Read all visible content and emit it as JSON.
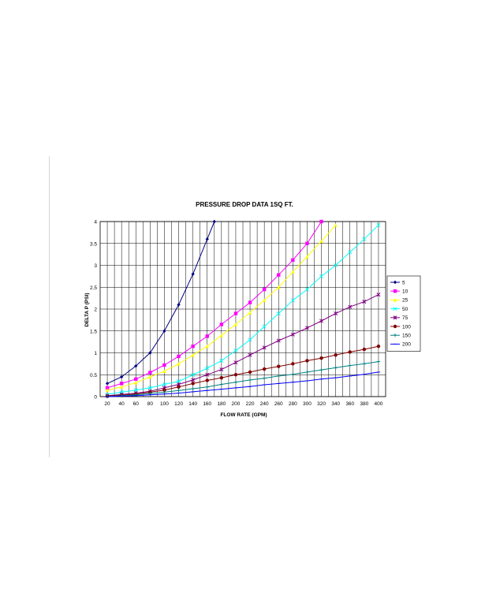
{
  "chart_data": {
    "type": "line",
    "title": "PRESSURE DROP DATA 1SQ FT.",
    "xlabel": "FLOW RATE (GPM)",
    "ylabel": "DELTA P (PSI)",
    "xlim": [
      10,
      410
    ],
    "ylim": [
      0,
      4
    ],
    "x_ticks": [
      20,
      40,
      60,
      80,
      100,
      120,
      140,
      160,
      180,
      200,
      220,
      240,
      260,
      280,
      300,
      320,
      340,
      360,
      380,
      400
    ],
    "y_ticks": [
      0,
      0.5,
      1,
      1.5,
      2,
      2.5,
      3,
      3.5,
      4
    ],
    "y_tick_labels": [
      "0",
      "0.5",
      "1",
      "1.5",
      "2",
      "2.5",
      "3",
      "3.5",
      "4"
    ],
    "grid": true,
    "legend_position": "right",
    "series": [
      {
        "name": "5",
        "color": "#000080",
        "marker": "diamond",
        "x": [
          20,
          40,
          60,
          80,
          100,
          120,
          140,
          160,
          170
        ],
        "y": [
          0.3,
          0.45,
          0.7,
          1.0,
          1.5,
          2.1,
          2.8,
          3.6,
          4.0
        ]
      },
      {
        "name": "10",
        "color": "#ff00ff",
        "marker": "square",
        "x": [
          20,
          40,
          60,
          80,
          100,
          120,
          140,
          160,
          180,
          200,
          220,
          240,
          260,
          280,
          300,
          320
        ],
        "y": [
          0.2,
          0.3,
          0.4,
          0.55,
          0.72,
          0.92,
          1.15,
          1.38,
          1.65,
          1.9,
          2.15,
          2.45,
          2.78,
          3.12,
          3.5,
          4.0
        ]
      },
      {
        "name": "25",
        "color": "#ffff00",
        "marker": "triangle",
        "x": [
          20,
          40,
          60,
          80,
          100,
          120,
          140,
          160,
          180,
          200,
          220,
          240,
          260,
          280,
          300,
          320,
          340
        ],
        "y": [
          0.15,
          0.22,
          0.32,
          0.45,
          0.58,
          0.75,
          0.95,
          1.15,
          1.4,
          1.65,
          1.92,
          2.2,
          2.5,
          2.85,
          3.2,
          3.55,
          3.92
        ]
      },
      {
        "name": "50",
        "color": "#00ffff",
        "marker": "x",
        "x": [
          20,
          40,
          60,
          80,
          100,
          120,
          140,
          160,
          180,
          200,
          220,
          240,
          260,
          280,
          300,
          320,
          340,
          360,
          380,
          400
        ],
        "y": [
          0.05,
          0.1,
          0.15,
          0.2,
          0.28,
          0.35,
          0.5,
          0.65,
          0.82,
          1.05,
          1.3,
          1.6,
          1.9,
          2.2,
          2.45,
          2.75,
          3.0,
          3.3,
          3.6,
          3.92
        ]
      },
      {
        "name": "75",
        "color": "#800080",
        "marker": "star",
        "x": [
          20,
          40,
          60,
          80,
          100,
          120,
          140,
          160,
          180,
          200,
          220,
          240,
          260,
          280,
          300,
          320,
          340,
          360,
          380,
          400
        ],
        "y": [
          0.02,
          0.05,
          0.08,
          0.12,
          0.2,
          0.28,
          0.38,
          0.5,
          0.62,
          0.78,
          0.95,
          1.12,
          1.28,
          1.42,
          1.57,
          1.73,
          1.9,
          2.05,
          2.17,
          2.33
        ]
      },
      {
        "name": "100",
        "color": "#800000",
        "marker": "circle",
        "x": [
          20,
          40,
          60,
          80,
          100,
          120,
          140,
          160,
          180,
          200,
          220,
          240,
          260,
          280,
          300,
          320,
          340,
          360,
          380,
          400
        ],
        "y": [
          0.01,
          0.03,
          0.06,
          0.1,
          0.15,
          0.22,
          0.3,
          0.37,
          0.43,
          0.5,
          0.56,
          0.63,
          0.69,
          0.75,
          0.82,
          0.88,
          0.95,
          1.02,
          1.08,
          1.15
        ]
      },
      {
        "name": "150",
        "color": "#008080",
        "marker": "plus",
        "x": [
          20,
          40,
          60,
          80,
          100,
          120,
          140,
          160,
          180,
          200,
          220,
          240,
          260,
          280,
          300,
          320,
          340,
          360,
          380,
          400
        ],
        "y": [
          0.0,
          0.02,
          0.04,
          0.07,
          0.1,
          0.14,
          0.18,
          0.22,
          0.28,
          0.33,
          0.38,
          0.42,
          0.47,
          0.51,
          0.56,
          0.61,
          0.66,
          0.71,
          0.75,
          0.8
        ]
      },
      {
        "name": "200",
        "color": "#0000ff",
        "marker": "dash",
        "x": [
          20,
          40,
          60,
          80,
          100,
          120,
          140,
          160,
          180,
          200,
          220,
          240,
          260,
          280,
          300,
          320,
          340,
          360,
          380,
          400
        ],
        "y": [
          0.0,
          0.01,
          0.02,
          0.04,
          0.06,
          0.08,
          0.11,
          0.14,
          0.17,
          0.2,
          0.23,
          0.27,
          0.3,
          0.33,
          0.36,
          0.4,
          0.43,
          0.47,
          0.51,
          0.56
        ]
      }
    ]
  }
}
